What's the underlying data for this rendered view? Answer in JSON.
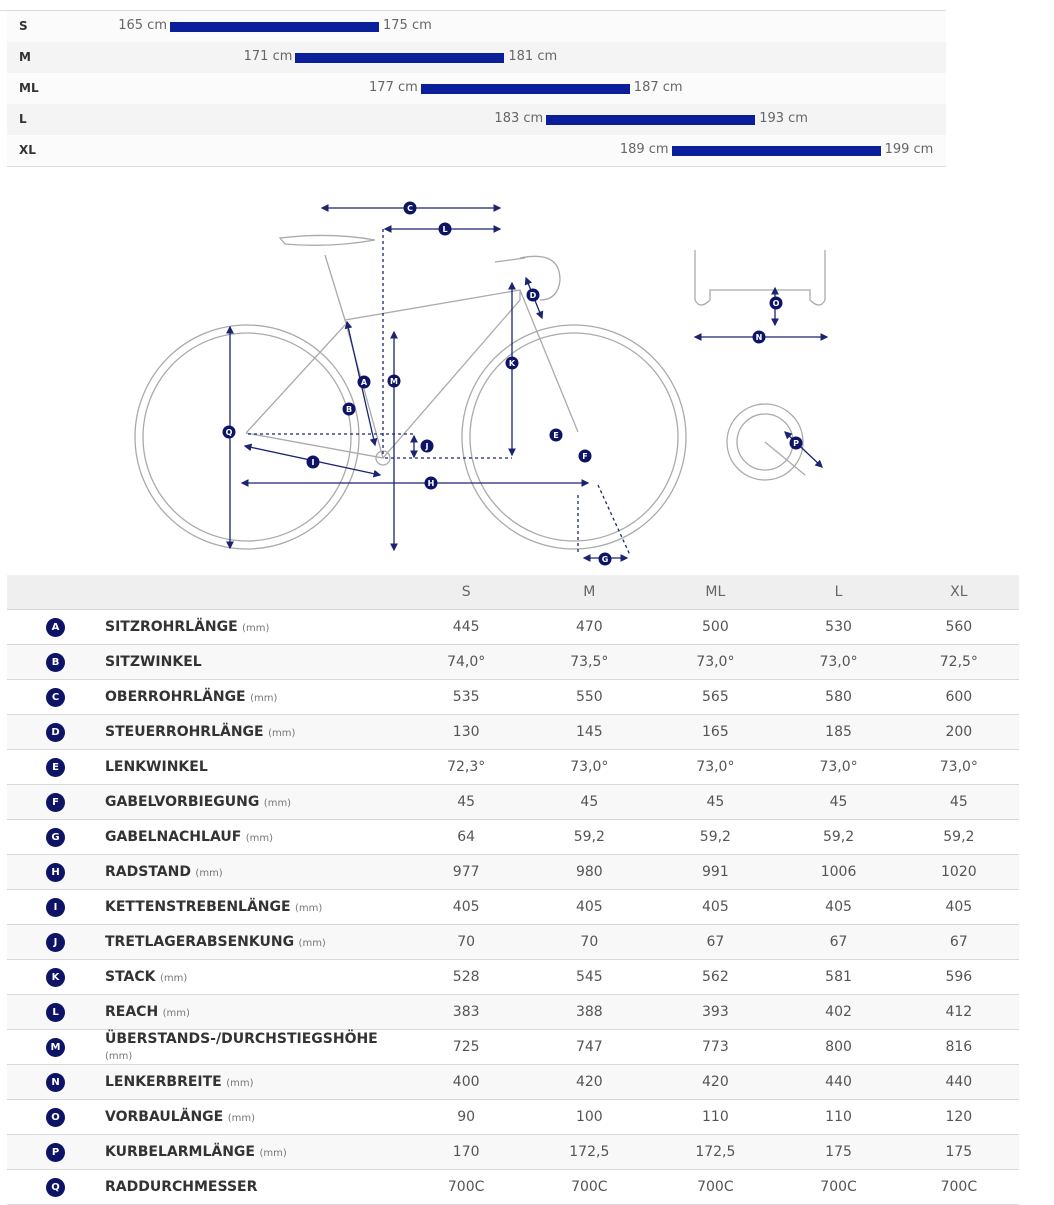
{
  "size_chart": {
    "unit": "cm",
    "rows": [
      {
        "size": "S",
        "min": 165,
        "max": 175,
        "min_label": "165 cm",
        "max_label": "175 cm"
      },
      {
        "size": "M",
        "min": 171,
        "max": 181,
        "min_label": "171 cm",
        "max_label": "181 cm"
      },
      {
        "size": "ML",
        "min": 177,
        "max": 187,
        "min_label": "177 cm",
        "max_label": "187 cm"
      },
      {
        "size": "L",
        "min": 183,
        "max": 193,
        "min_label": "183 cm",
        "max_label": "193 cm"
      },
      {
        "size": "XL",
        "min": 189,
        "max": 199,
        "min_label": "189 cm",
        "max_label": "199 cm"
      }
    ],
    "bar_color": "#0a1f99"
  },
  "diagram": {
    "labels": [
      "A",
      "B",
      "C",
      "D",
      "E",
      "F",
      "G",
      "H",
      "I",
      "J",
      "K",
      "L",
      "M",
      "N",
      "O",
      "P",
      "Q"
    ],
    "accent": "#0d1466"
  },
  "geometry": {
    "sizes": [
      "S",
      "M",
      "ML",
      "L",
      "XL"
    ],
    "rows": [
      {
        "key": "A",
        "name": "SITZROHRLÄNGE",
        "unit": "(mm)",
        "values": [
          "445",
          "470",
          "500",
          "530",
          "560"
        ]
      },
      {
        "key": "B",
        "name": "SITZWINKEL",
        "unit": "",
        "values": [
          "74,0°",
          "73,5°",
          "73,0°",
          "73,0°",
          "72,5°"
        ]
      },
      {
        "key": "C",
        "name": "OBERROHRLÄNGE",
        "unit": "(mm)",
        "values": [
          "535",
          "550",
          "565",
          "580",
          "600"
        ]
      },
      {
        "key": "D",
        "name": "STEUERROHRLÄNGE",
        "unit": "(mm)",
        "values": [
          "130",
          "145",
          "165",
          "185",
          "200"
        ]
      },
      {
        "key": "E",
        "name": "LENKWINKEL",
        "unit": "",
        "values": [
          "72,3°",
          "73,0°",
          "73,0°",
          "73,0°",
          "73,0°"
        ]
      },
      {
        "key": "F",
        "name": "GABELVORBIEGUNG",
        "unit": "(mm)",
        "values": [
          "45",
          "45",
          "45",
          "45",
          "45"
        ]
      },
      {
        "key": "G",
        "name": "GABELNACHLAUF",
        "unit": "(mm)",
        "values": [
          "64",
          "59,2",
          "59,2",
          "59,2",
          "59,2"
        ]
      },
      {
        "key": "H",
        "name": "RADSTAND",
        "unit": "(mm)",
        "values": [
          "977",
          "980",
          "991",
          "1006",
          "1020"
        ]
      },
      {
        "key": "I",
        "name": "KETTENSTREBENLÄNGE",
        "unit": "(mm)",
        "values": [
          "405",
          "405",
          "405",
          "405",
          "405"
        ]
      },
      {
        "key": "J",
        "name": "TRETLAGERABSENKUNG",
        "unit": "(mm)",
        "values": [
          "70",
          "70",
          "67",
          "67",
          "67"
        ]
      },
      {
        "key": "K",
        "name": "STACK",
        "unit": "(mm)",
        "values": [
          "528",
          "545",
          "562",
          "581",
          "596"
        ]
      },
      {
        "key": "L",
        "name": "REACH",
        "unit": "(mm)",
        "values": [
          "383",
          "388",
          "393",
          "402",
          "412"
        ]
      },
      {
        "key": "M",
        "name": "ÜBERSTANDS-/DURCHSTIEGSHÖHE",
        "unit": "(mm)",
        "values": [
          "725",
          "747",
          "773",
          "800",
          "816"
        ]
      },
      {
        "key": "N",
        "name": "LENKERBREITE",
        "unit": "(mm)",
        "values": [
          "400",
          "420",
          "420",
          "440",
          "440"
        ]
      },
      {
        "key": "O",
        "name": "VORBAULÄNGE",
        "unit": "(mm)",
        "values": [
          "90",
          "100",
          "110",
          "110",
          "120"
        ]
      },
      {
        "key": "P",
        "name": "KURBELARMLÄNGE",
        "unit": "(mm)",
        "values": [
          "170",
          "172,5",
          "172,5",
          "175",
          "175"
        ]
      },
      {
        "key": "Q",
        "name": "RADDURCHMESSER",
        "unit": "",
        "values": [
          "700C",
          "700C",
          "700C",
          "700C",
          "700C"
        ]
      }
    ]
  }
}
